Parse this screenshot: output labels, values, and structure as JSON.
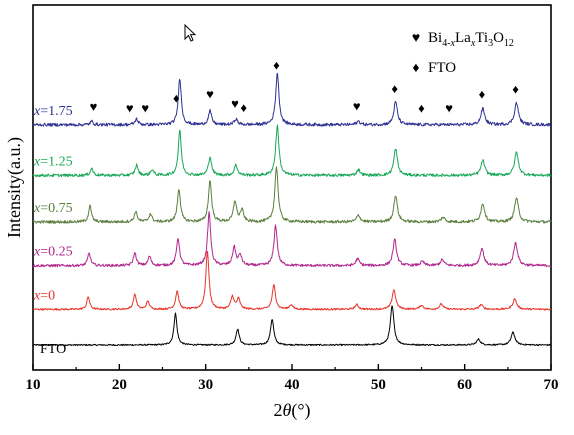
{
  "chart_data": {
    "type": "line",
    "xlabel": "2θ(°)",
    "xlabel_parts": [
      "2",
      "θ",
      "(°)"
    ],
    "ylabel": "Intensity(a.u.)",
    "xlim": [
      10,
      70
    ],
    "xticks": [
      10,
      20,
      30,
      40,
      50,
      60,
      70
    ],
    "y_axis_ticks_shown": false,
    "legend": [
      {
        "marker": "♥",
        "label_parts": [
          "Bi",
          "4-x",
          "La",
          "x",
          "Ti",
          "3",
          "O",
          "12"
        ],
        "label": "Bi4-xLaxTi3O12"
      },
      {
        "marker": "♦",
        "label": "FTO"
      }
    ],
    "series": [
      {
        "name": "FTO",
        "label_parts": [
          "FTO"
        ],
        "color": "#000000",
        "baseline": 0.0,
        "noise": 0.012,
        "peaks": [
          [
            26.5,
            0.55
          ],
          [
            33.7,
            0.28
          ],
          [
            37.7,
            0.45
          ],
          [
            51.6,
            0.68
          ],
          [
            61.6,
            0.1
          ],
          [
            65.6,
            0.22
          ]
        ]
      },
      {
        "name": "x=0",
        "label_parts": [
          "x",
          "=0"
        ],
        "color": "#e8352a",
        "baseline": 0.62,
        "noise": 0.015,
        "peaks": [
          [
            16.4,
            0.22
          ],
          [
            21.8,
            0.26
          ],
          [
            23.3,
            0.14
          ],
          [
            26.7,
            0.32
          ],
          [
            30.2,
            1.02
          ],
          [
            33.1,
            0.22
          ],
          [
            33.8,
            0.18
          ],
          [
            37.9,
            0.42
          ],
          [
            39.9,
            0.08
          ],
          [
            47.5,
            0.08
          ],
          [
            51.8,
            0.34
          ],
          [
            55.0,
            0.07
          ],
          [
            57.3,
            0.09
          ],
          [
            61.9,
            0.08
          ],
          [
            65.8,
            0.18
          ]
        ]
      },
      {
        "name": "x=0.25",
        "label_parts": [
          "x",
          "=0.25"
        ],
        "color": "#b0278d",
        "baseline": 1.38,
        "noise": 0.022,
        "peaks": [
          [
            16.5,
            0.22
          ],
          [
            21.8,
            0.22
          ],
          [
            23.5,
            0.16
          ],
          [
            26.8,
            0.48
          ],
          [
            30.4,
            0.92
          ],
          [
            33.3,
            0.32
          ],
          [
            34.0,
            0.18
          ],
          [
            38.1,
            0.7
          ],
          [
            47.6,
            0.12
          ],
          [
            51.9,
            0.45
          ],
          [
            55.1,
            0.07
          ],
          [
            57.4,
            0.1
          ],
          [
            62.0,
            0.3
          ],
          [
            65.9,
            0.4
          ]
        ]
      },
      {
        "name": "x=0.75",
        "label_parts": [
          "x",
          "=0.75"
        ],
        "color": "#5b7e3d",
        "baseline": 2.14,
        "noise": 0.024,
        "peaks": [
          [
            16.6,
            0.28
          ],
          [
            21.9,
            0.18
          ],
          [
            23.6,
            0.14
          ],
          [
            26.9,
            0.58
          ],
          [
            30.5,
            0.72
          ],
          [
            33.4,
            0.36
          ],
          [
            34.2,
            0.2
          ],
          [
            38.2,
            0.96
          ],
          [
            47.7,
            0.12
          ],
          [
            52.0,
            0.46
          ],
          [
            57.5,
            0.08
          ],
          [
            62.1,
            0.32
          ],
          [
            66.0,
            0.42
          ]
        ]
      },
      {
        "name": "x=1.25",
        "label_parts": [
          "x",
          "=1.25"
        ],
        "color": "#19a857",
        "baseline": 2.95,
        "noise": 0.024,
        "peaks": [
          [
            16.8,
            0.12
          ],
          [
            22.0,
            0.18
          ],
          [
            23.8,
            0.1
          ],
          [
            27.0,
            0.78
          ],
          [
            30.5,
            0.32
          ],
          [
            33.5,
            0.18
          ],
          [
            38.3,
            0.86
          ],
          [
            47.7,
            0.1
          ],
          [
            52.0,
            0.46
          ],
          [
            62.1,
            0.26
          ],
          [
            66.0,
            0.4
          ]
        ]
      },
      {
        "name": "x=1.75",
        "label_parts": [
          "x",
          "=1.75"
        ],
        "color": "#2e3192",
        "baseline": 3.83,
        "noise": 0.026,
        "peaks": [
          [
            16.8,
            0.06
          ],
          [
            22.0,
            0.1
          ],
          [
            27.0,
            0.82
          ],
          [
            30.5,
            0.24
          ],
          [
            33.5,
            0.1
          ],
          [
            38.3,
            0.9
          ],
          [
            47.7,
            0.06
          ],
          [
            52.0,
            0.4
          ],
          [
            62.1,
            0.28
          ],
          [
            66.0,
            0.38
          ]
        ]
      }
    ],
    "peak_markers": [
      {
        "x": 17.0,
        "symbol": "♥"
      },
      {
        "x": 21.2,
        "symbol": "♥"
      },
      {
        "x": 23.0,
        "symbol": "♥"
      },
      {
        "x": 26.6,
        "symbol": "♦"
      },
      {
        "x": 30.5,
        "symbol": "♥"
      },
      {
        "x": 33.4,
        "symbol": "♥"
      },
      {
        "x": 34.4,
        "symbol": "♦"
      },
      {
        "x": 38.2,
        "symbol": "♦"
      },
      {
        "x": 47.5,
        "symbol": "♥"
      },
      {
        "x": 51.9,
        "symbol": "♦"
      },
      {
        "x": 55.0,
        "symbol": "♦"
      },
      {
        "x": 58.2,
        "symbol": "♥"
      },
      {
        "x": 62.0,
        "symbol": "♦"
      },
      {
        "x": 65.9,
        "symbol": "♦"
      }
    ]
  }
}
